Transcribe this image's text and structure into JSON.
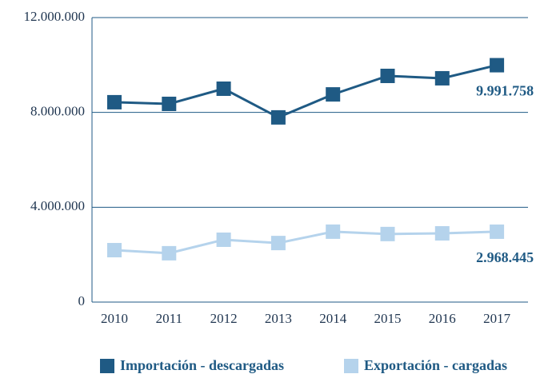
{
  "chart_data": {
    "type": "line",
    "categories": [
      "2010",
      "2011",
      "2012",
      "2013",
      "2014",
      "2015",
      "2016",
      "2017"
    ],
    "series": [
      {
        "name": "Importación - descargadas",
        "color": "#1f5a84",
        "values": [
          8430000,
          8360000,
          9000000,
          7790000,
          8760000,
          9540000,
          9440000,
          9991758
        ],
        "value_labels": [
          null,
          null,
          null,
          null,
          null,
          null,
          null,
          "9.991.758"
        ]
      },
      {
        "name": "Exportación - cargadas",
        "color": "#b5d3ec",
        "values": [
          2190000,
          2060000,
          2630000,
          2490000,
          2970000,
          2870000,
          2900000,
          2968445
        ],
        "value_labels": [
          null,
          null,
          null,
          null,
          null,
          null,
          null,
          "2.968.445"
        ]
      }
    ],
    "ylim": [
      0,
      12000000
    ],
    "yticks": [
      {
        "value": 0,
        "label": "0"
      },
      {
        "value": 4000000,
        "label": "4.000.000"
      },
      {
        "value": 8000000,
        "label": "8.000.000"
      },
      {
        "value": 12000000,
        "label": "12.000.000"
      }
    ],
    "grid": true,
    "legend": "bottom"
  }
}
